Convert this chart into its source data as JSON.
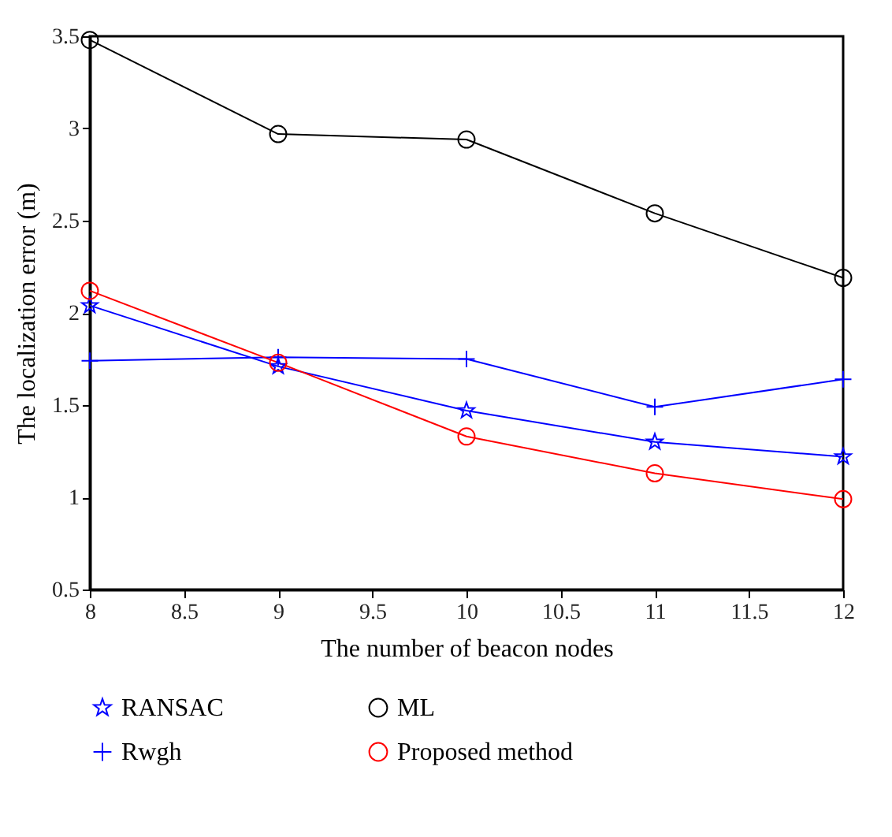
{
  "chart_data": {
    "type": "line",
    "xlabel": "The number of beacon nodes",
    "ylabel": "The localization error (m)",
    "x": [
      8,
      9,
      10,
      11,
      12
    ],
    "xlim": [
      8,
      12
    ],
    "xticks": [
      8,
      8.5,
      9,
      9.5,
      10,
      10.5,
      11,
      11.5,
      12
    ],
    "ylim": [
      0.5,
      3.5
    ],
    "yticks": [
      0.5,
      1,
      1.5,
      2,
      2.5,
      3,
      3.5
    ],
    "grid": false,
    "legend": "bottom",
    "line_style": "solid",
    "series": [
      {
        "name": "RANSAC",
        "color": "#0000ff",
        "marker": "star",
        "values": [
          2.04,
          1.71,
          1.47,
          1.3,
          1.22
        ]
      },
      {
        "name": "ML",
        "color": "#000000",
        "marker": "circle",
        "values": [
          3.48,
          2.97,
          2.94,
          2.54,
          2.19
        ]
      },
      {
        "name": "Rwgh",
        "color": "#0000ff",
        "marker": "cross",
        "values": [
          1.74,
          1.76,
          1.75,
          1.49,
          1.64
        ]
      },
      {
        "name": "Proposed method",
        "color": "#ff0000",
        "marker": "circle",
        "values": [
          2.12,
          1.73,
          1.33,
          1.13,
          0.99
        ]
      }
    ]
  }
}
